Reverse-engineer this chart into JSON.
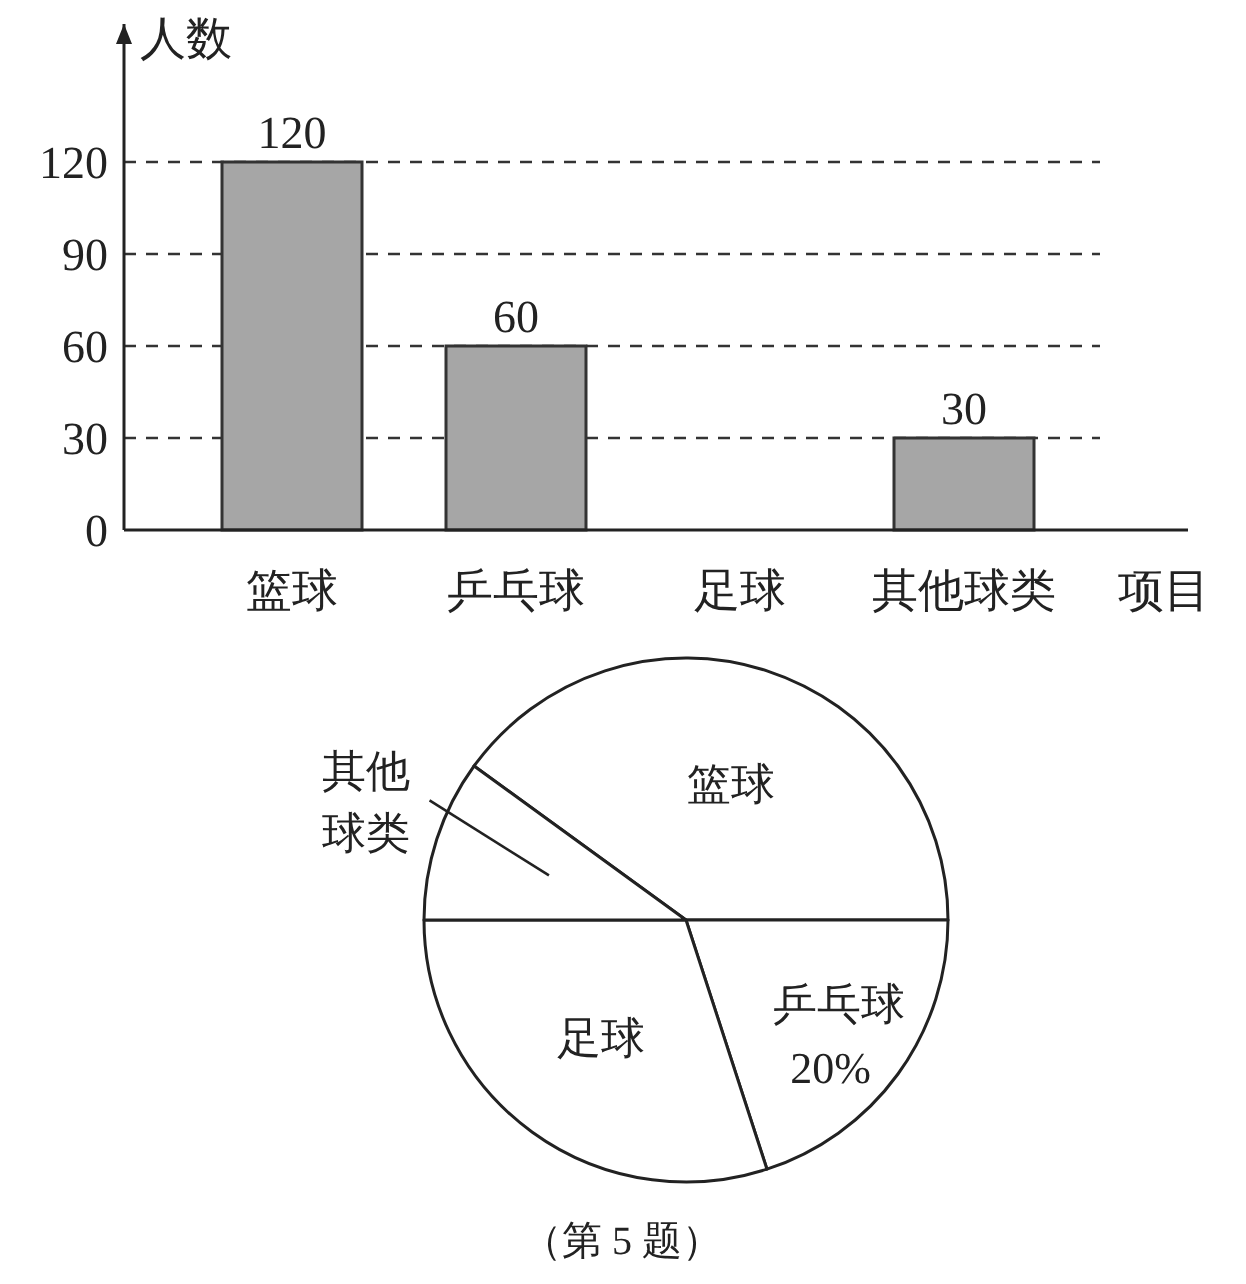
{
  "chart_data": [
    {
      "type": "bar",
      "ylabel": "人数",
      "xlabel": "项目",
      "categories": [
        "篮球",
        "乒乓球",
        "足球",
        "其他球类"
      ],
      "values": [
        120,
        60,
        null,
        30
      ],
      "color": "#a6a6a6",
      "ylim": [
        0,
        165
      ],
      "yticks": [
        0,
        30,
        60,
        90,
        120
      ],
      "grid": "y",
      "data_labels": true
    },
    {
      "type": "pie",
      "categories": [
        "篮球",
        "乒乓球",
        "足球",
        "其他球类"
      ],
      "values": [
        40,
        20,
        30,
        10
      ],
      "colors": [
        "#ffffff",
        "#ffffff",
        "#ffffff",
        "#ffffff"
      ],
      "value_labels": [
        null,
        "20%",
        null,
        null
      ],
      "annotations": [
        "（第 5 题）"
      ]
    }
  ]
}
